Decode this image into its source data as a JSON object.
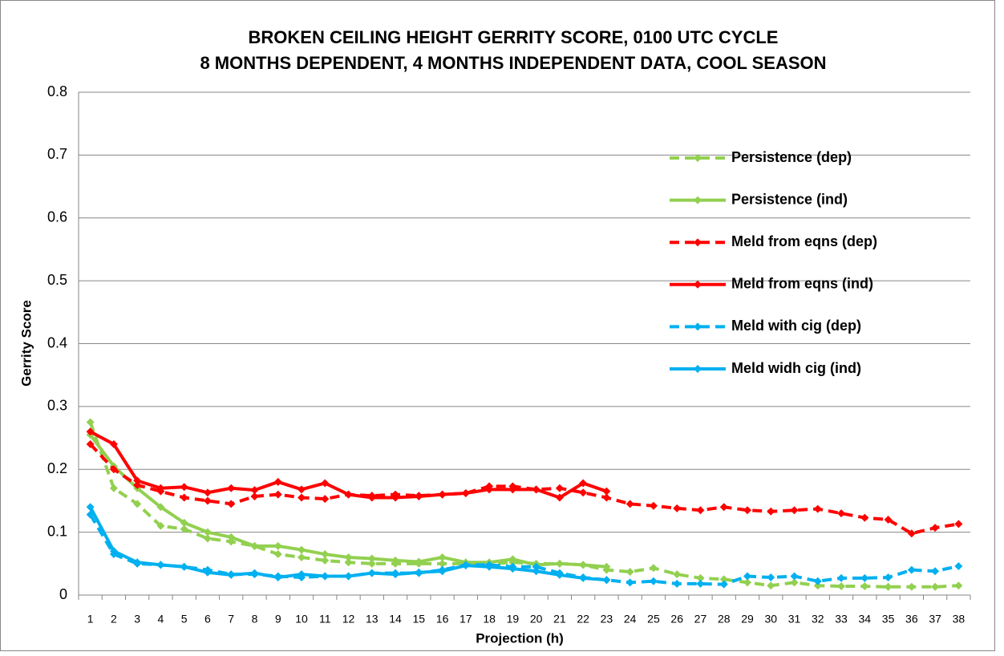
{
  "chart_data": {
    "type": "line",
    "title": [
      "BROKEN CEILING HEIGHT GERRITY SCORE, 0100 UTC CYCLE",
      "8 MONTHS DEPENDENT, 4 MONTHS INDEPENDENT DATA, COOL SEASON"
    ],
    "x_label": "Projection (h)",
    "y_label": "Gerrity Score",
    "categories": [
      1,
      2,
      3,
      4,
      5,
      6,
      7,
      8,
      9,
      10,
      11,
      12,
      13,
      14,
      15,
      16,
      17,
      18,
      19,
      20,
      21,
      22,
      23,
      24,
      25,
      26,
      27,
      28,
      29,
      30,
      31,
      32,
      33,
      34,
      35,
      36,
      37,
      38
    ],
    "ylim": [
      0,
      0.8
    ],
    "yticks": [
      0,
      0.1,
      0.2,
      0.3,
      0.4,
      0.5,
      0.6,
      0.7,
      0.8
    ],
    "grid": true,
    "legend": "right",
    "series": [
      {
        "name": "Persistence (dep)",
        "color": "#92d050",
        "dashed": true,
        "values": [
          0.275,
          0.17,
          0.145,
          0.11,
          0.105,
          0.09,
          0.085,
          0.078,
          0.065,
          0.06,
          0.055,
          0.052,
          0.05,
          0.05,
          0.05,
          0.05,
          0.05,
          0.05,
          0.052,
          0.05,
          0.05,
          0.048,
          0.04,
          0.037,
          0.043,
          0.033,
          0.027,
          0.025,
          0.02,
          0.015,
          0.02,
          0.015,
          0.014,
          0.014,
          0.013,
          0.013,
          0.013,
          0.015
        ]
      },
      {
        "name": "Persistence (ind)",
        "color": "#92d050",
        "dashed": false,
        "values": [
          0.255,
          0.205,
          0.17,
          0.14,
          0.115,
          0.1,
          0.092,
          0.078,
          0.078,
          0.072,
          0.065,
          0.06,
          0.058,
          0.055,
          0.053,
          0.06,
          0.052,
          0.052,
          0.057,
          0.048,
          0.05,
          0.048,
          0.045,
          null,
          null,
          null,
          null,
          null,
          null,
          null,
          null,
          null,
          null,
          null,
          null,
          null,
          null,
          null
        ]
      },
      {
        "name": "Meld from eqns (dep)",
        "color": "#ff0000",
        "dashed": true,
        "values": [
          0.24,
          0.2,
          0.175,
          0.165,
          0.155,
          0.15,
          0.145,
          0.157,
          0.16,
          0.155,
          0.153,
          0.16,
          0.158,
          0.16,
          0.158,
          0.16,
          0.162,
          0.173,
          0.173,
          0.168,
          0.17,
          0.163,
          0.155,
          0.145,
          0.142,
          0.138,
          0.135,
          0.14,
          0.135,
          0.133,
          0.135,
          0.137,
          0.13,
          0.123,
          0.12,
          0.098,
          0.107,
          0.113
        ]
      },
      {
        "name": "Meld from eqns (ind)",
        "color": "#ff0000",
        "dashed": false,
        "values": [
          0.26,
          0.24,
          0.182,
          0.17,
          0.172,
          0.163,
          0.17,
          0.167,
          0.18,
          0.168,
          0.178,
          0.16,
          0.155,
          0.155,
          0.157,
          0.16,
          0.162,
          0.168,
          0.168,
          0.168,
          0.155,
          0.178,
          0.165,
          null,
          null,
          null,
          null,
          null,
          null,
          null,
          null,
          null,
          null,
          null,
          null,
          null,
          null,
          null
        ]
      },
      {
        "name": "Meld with cig (dep)",
        "color": "#00b0f0",
        "dashed": true,
        "values": [
          0.128,
          0.065,
          0.05,
          0.048,
          0.045,
          0.04,
          0.033,
          0.033,
          0.03,
          0.028,
          0.03,
          0.03,
          0.035,
          0.035,
          0.035,
          0.04,
          0.048,
          0.048,
          0.045,
          0.045,
          0.035,
          0.028,
          0.024,
          0.02,
          0.022,
          0.018,
          0.018,
          0.017,
          0.03,
          0.028,
          0.03,
          0.022,
          0.027,
          0.027,
          0.028,
          0.04,
          0.038,
          0.046
        ]
      },
      {
        "name": "Meld widh cig (ind)",
        "color": "#00b0f0",
        "dashed": false,
        "values": [
          0.14,
          0.07,
          0.052,
          0.048,
          0.045,
          0.036,
          0.032,
          0.035,
          0.028,
          0.033,
          0.03,
          0.03,
          0.035,
          0.033,
          0.036,
          0.038,
          0.047,
          0.045,
          0.042,
          0.038,
          0.032,
          0.027,
          0.024,
          null,
          null,
          null,
          null,
          null,
          null,
          null,
          null,
          null,
          null,
          null,
          null,
          null,
          null,
          null
        ]
      }
    ]
  }
}
